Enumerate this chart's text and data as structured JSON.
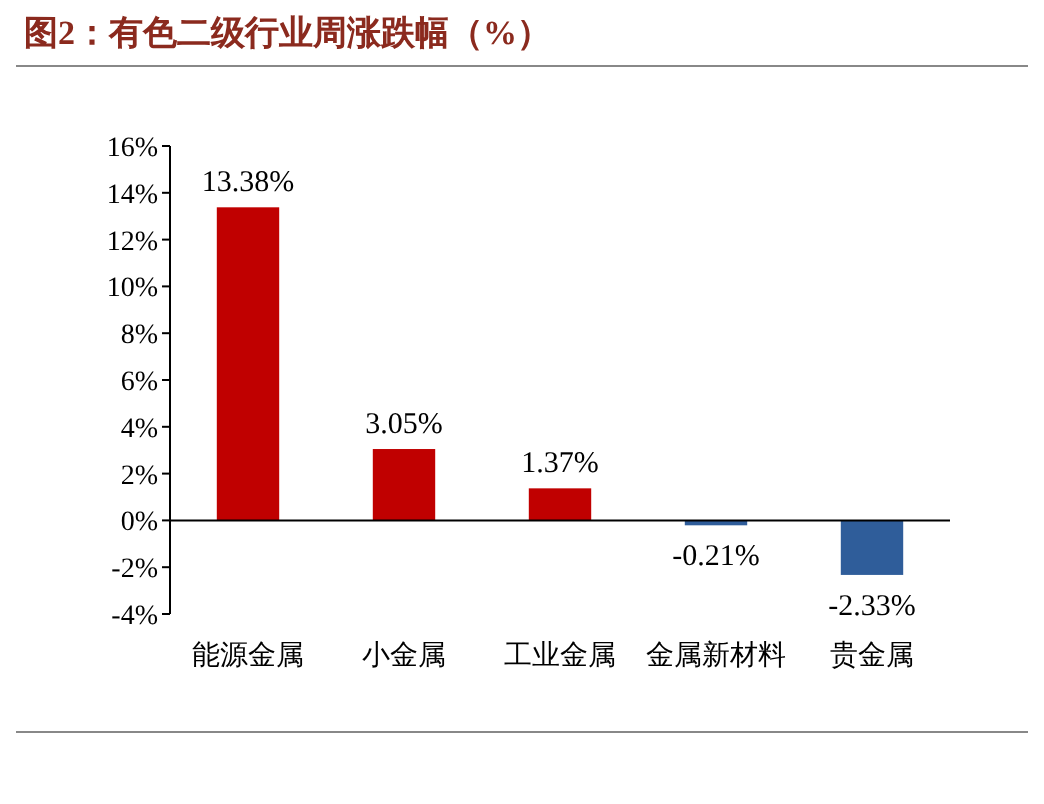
{
  "chart_data": {
    "type": "bar",
    "title": "图2：有色二级行业周涨跌幅（%）",
    "categories": [
      "能源金属",
      "小金属",
      "工业金属",
      "金属新材料",
      "贵金属"
    ],
    "values": [
      13.38,
      3.05,
      1.37,
      -0.21,
      -2.33
    ],
    "colors": [
      "#c00000",
      "#c00000",
      "#c00000",
      "#2f5d9a",
      "#2f5d9a"
    ],
    "value_labels": [
      "13.38%",
      "3.05%",
      "1.37%",
      "-0.21%",
      "-2.33%"
    ],
    "ylim": [
      -4,
      16
    ],
    "yticks": [
      {
        "value": -4,
        "label": "-4%"
      },
      {
        "value": -2,
        "label": "-2%"
      },
      {
        "value": 0,
        "label": "0%"
      },
      {
        "value": 2,
        "label": "2%"
      },
      {
        "value": 4,
        "label": "4%"
      },
      {
        "value": 6,
        "label": "6%"
      },
      {
        "value": 8,
        "label": "8%"
      },
      {
        "value": 10,
        "label": "10%"
      },
      {
        "value": 12,
        "label": "12%"
      },
      {
        "value": 14,
        "label": "14%"
      },
      {
        "value": 16,
        "label": "16%"
      }
    ]
  }
}
